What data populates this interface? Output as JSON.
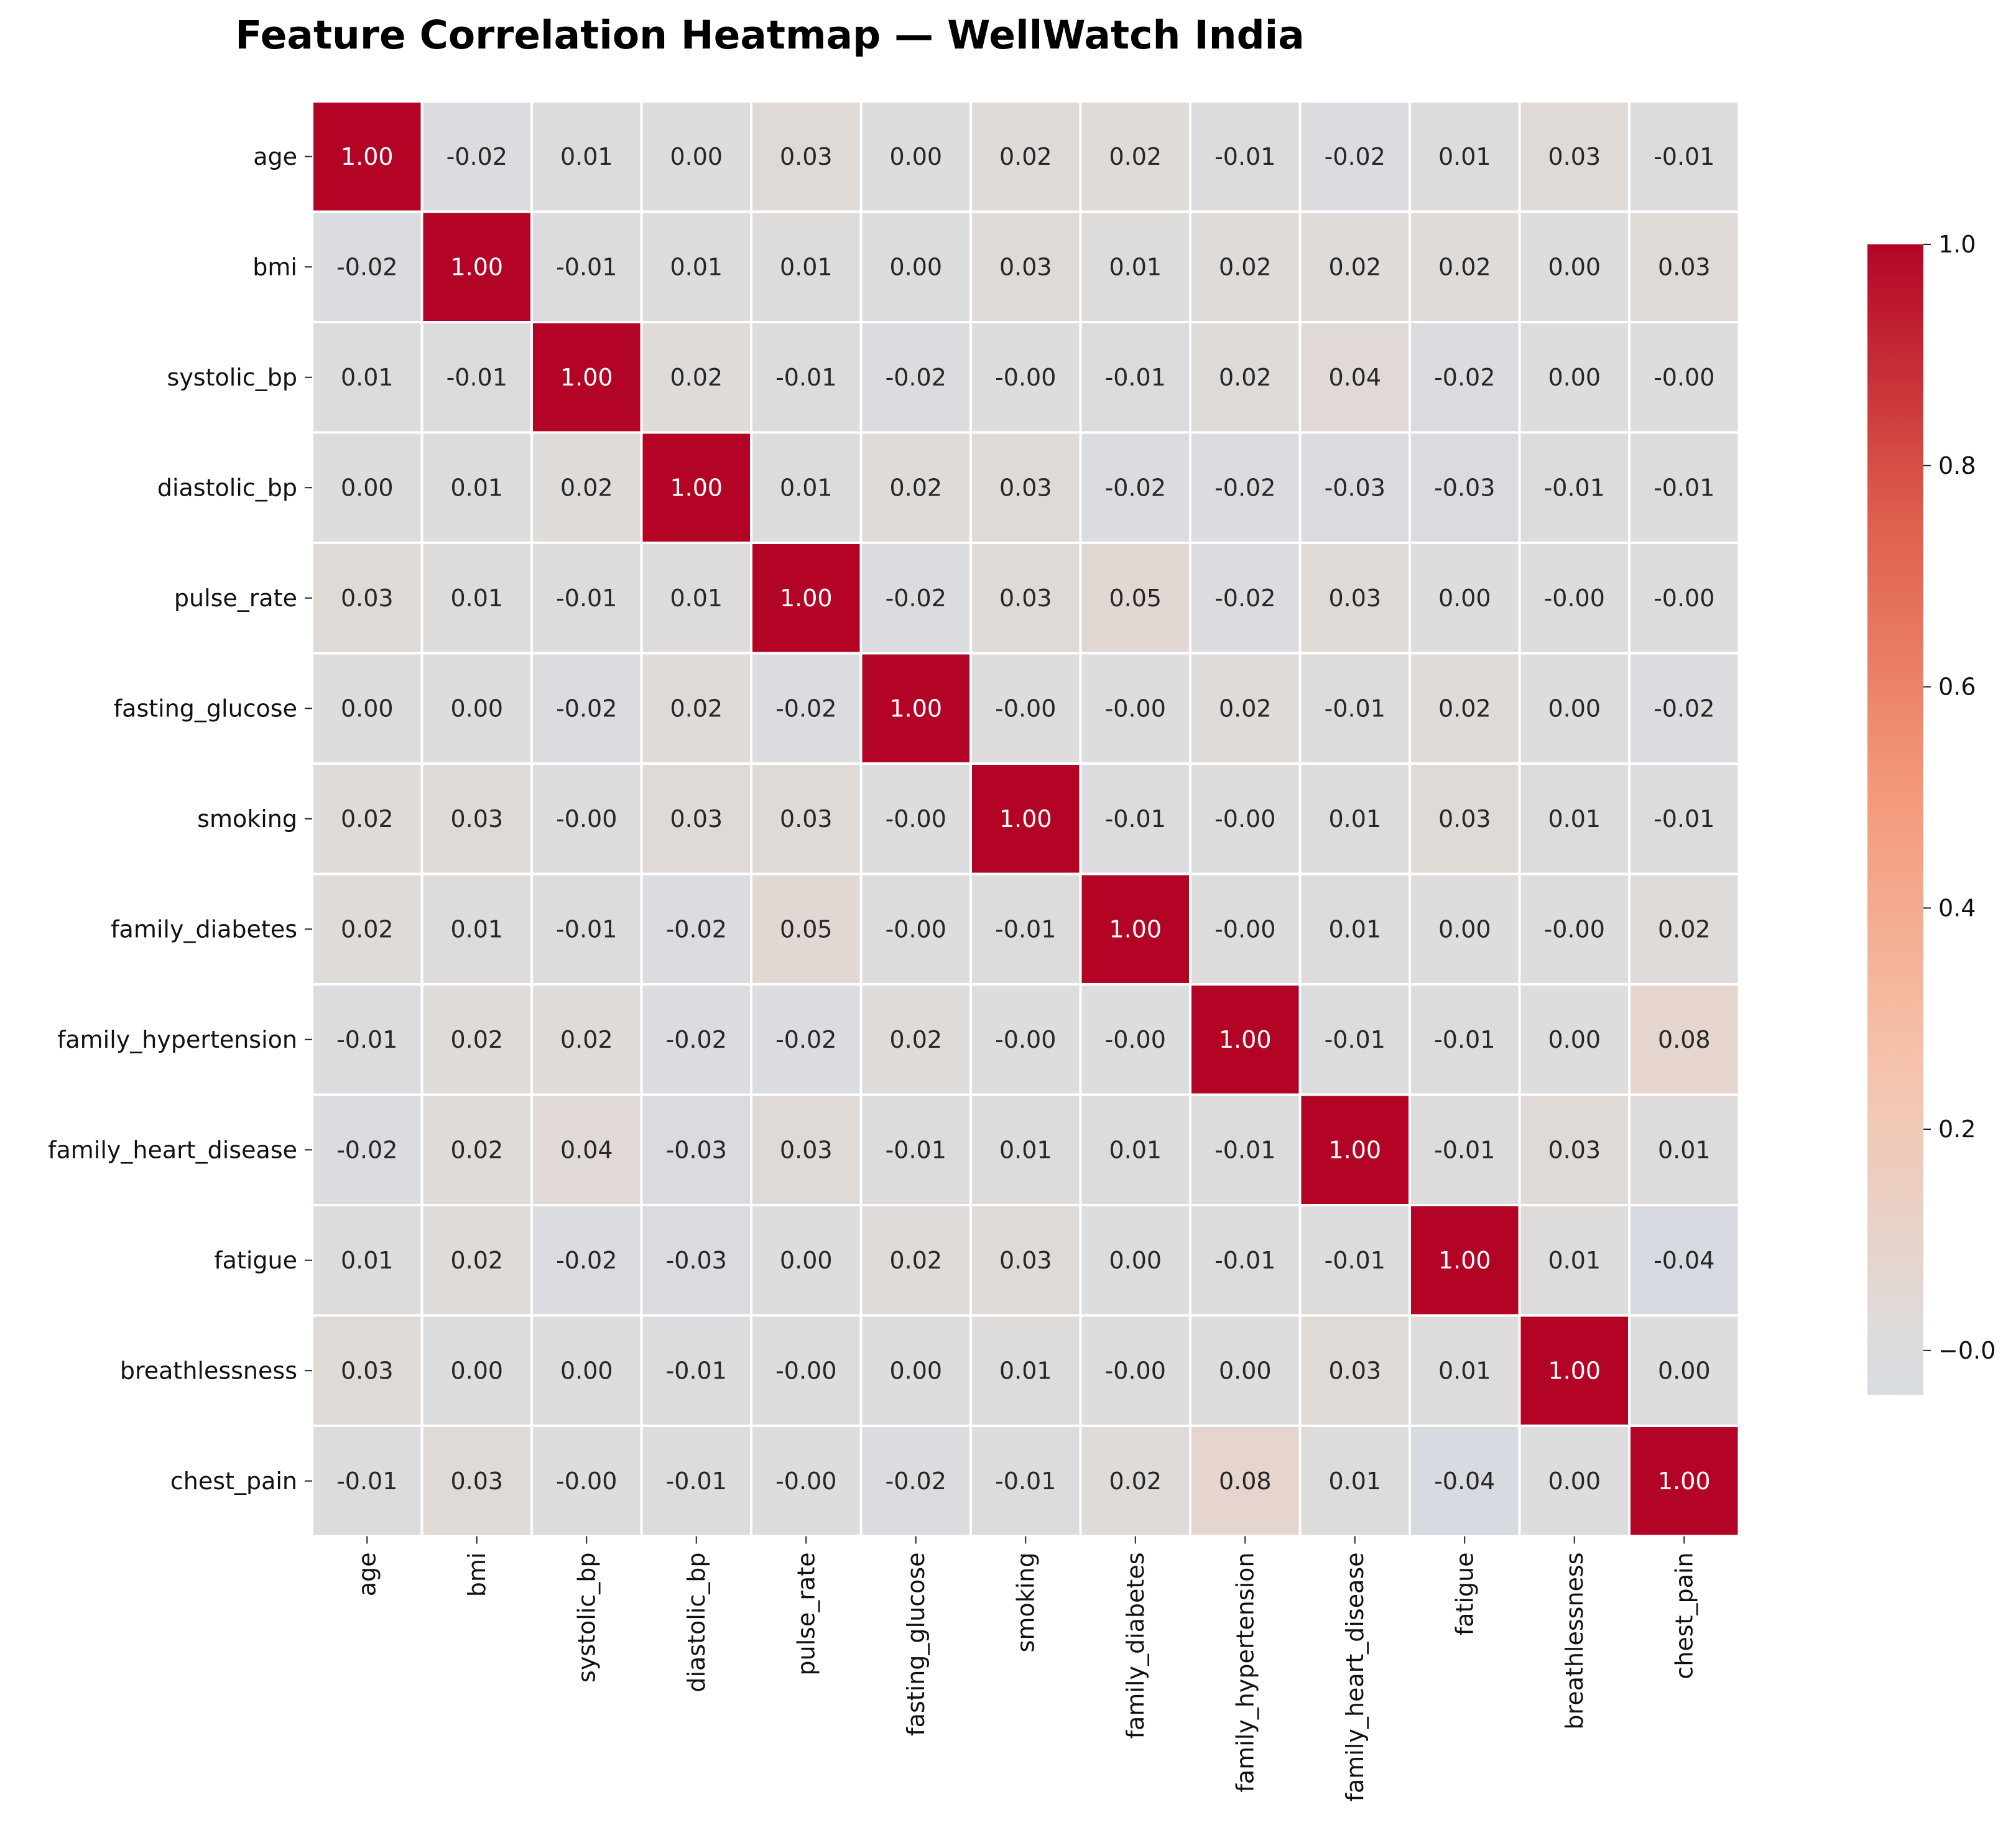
{
  "chart_data": {
    "type": "heatmap",
    "title": "Feature Correlation Heatmap — WellWatch India",
    "labels": [
      "age",
      "bmi",
      "systolic_bp",
      "diastolic_bp",
      "pulse_rate",
      "fasting_glucose",
      "smoking",
      "family_diabetes",
      "family_hypertension",
      "family_heart_disease",
      "fatigue",
      "breathlessness",
      "chest_pain"
    ],
    "cell_text": [
      [
        "1.00",
        "-0.02",
        "0.01",
        "0.00",
        "0.03",
        "0.00",
        "0.02",
        "0.02",
        "-0.01",
        "-0.02",
        "0.01",
        "0.03",
        "-0.01"
      ],
      [
        "-0.02",
        "1.00",
        "-0.01",
        "0.01",
        "0.01",
        "0.00",
        "0.03",
        "0.01",
        "0.02",
        "0.02",
        "0.02",
        "0.00",
        "0.03"
      ],
      [
        "0.01",
        "-0.01",
        "1.00",
        "0.02",
        "-0.01",
        "-0.02",
        "-0.00",
        "-0.01",
        "0.02",
        "0.04",
        "-0.02",
        "0.00",
        "-0.00"
      ],
      [
        "0.00",
        "0.01",
        "0.02",
        "1.00",
        "0.01",
        "0.02",
        "0.03",
        "-0.02",
        "-0.02",
        "-0.03",
        "-0.03",
        "-0.01",
        "-0.01"
      ],
      [
        "0.03",
        "0.01",
        "-0.01",
        "0.01",
        "1.00",
        "-0.02",
        "0.03",
        "0.05",
        "-0.02",
        "0.03",
        "0.00",
        "-0.00",
        "-0.00"
      ],
      [
        "0.00",
        "0.00",
        "-0.02",
        "0.02",
        "-0.02",
        "1.00",
        "-0.00",
        "-0.00",
        "0.02",
        "-0.01",
        "0.02",
        "0.00",
        "-0.02"
      ],
      [
        "0.02",
        "0.03",
        "-0.00",
        "0.03",
        "0.03",
        "-0.00",
        "1.00",
        "-0.01",
        "-0.00",
        "0.01",
        "0.03",
        "0.01",
        "-0.01"
      ],
      [
        "0.02",
        "0.01",
        "-0.01",
        "-0.02",
        "0.05",
        "-0.00",
        "-0.01",
        "1.00",
        "-0.00",
        "0.01",
        "0.00",
        "-0.00",
        "0.02"
      ],
      [
        "-0.01",
        "0.02",
        "0.02",
        "-0.02",
        "-0.02",
        "0.02",
        "-0.00",
        "-0.00",
        "1.00",
        "-0.01",
        "-0.01",
        "0.00",
        "0.08"
      ],
      [
        "-0.02",
        "0.02",
        "0.04",
        "-0.03",
        "0.03",
        "-0.01",
        "0.01",
        "0.01",
        "-0.01",
        "1.00",
        "-0.01",
        "0.03",
        "0.01"
      ],
      [
        "0.01",
        "0.02",
        "-0.02",
        "-0.03",
        "0.00",
        "0.02",
        "0.03",
        "0.00",
        "-0.01",
        "-0.01",
        "1.00",
        "0.01",
        "-0.04"
      ],
      [
        "0.03",
        "0.00",
        "0.00",
        "-0.01",
        "-0.00",
        "0.00",
        "0.01",
        "-0.00",
        "0.00",
        "0.03",
        "0.01",
        "1.00",
        "0.00"
      ],
      [
        "-0.01",
        "0.03",
        "-0.00",
        "-0.01",
        "-0.00",
        "-0.02",
        "-0.01",
        "0.02",
        "0.08",
        "0.01",
        "-0.04",
        "0.00",
        "1.00"
      ]
    ],
    "colorbar": {
      "vmin": -0.04,
      "vmax": 1.0,
      "ticks": [
        0.0,
        0.2,
        0.4,
        0.6,
        0.8,
        1.0
      ],
      "tick_labels": [
        "−0.0",
        "0.2",
        "0.4",
        "0.6",
        "0.8",
        "1.0"
      ],
      "colormap": "coolwarm"
    },
    "cell_border_color": "#ffffff",
    "grid": false
  }
}
